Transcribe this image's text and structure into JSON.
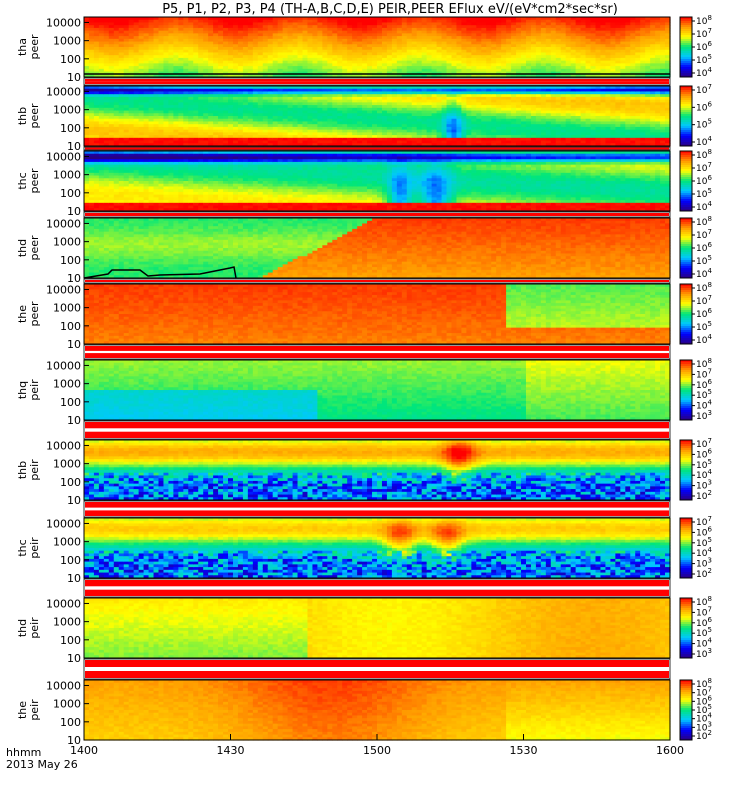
{
  "chart_data": {
    "type": "heatmap",
    "title": "P5, P1, P2, P3, P4 (TH-A,B,C,D,E) PEIR,PEER EFlux eV/(eV*cm2*sec*sr)",
    "x_ticks": [
      "1400",
      "1430",
      "1500",
      "1530",
      "1600"
    ],
    "x_range_minutes": [
      0,
      120
    ],
    "x_tick_minutes": [
      0,
      30,
      60,
      90,
      120
    ],
    "x_label_line1": "hhmm",
    "x_label_line2": "2013 May 26",
    "y_scale": "log",
    "y_ticks": [
      "10",
      "100",
      "1000",
      "10000"
    ],
    "y_tick_values": [
      10,
      100,
      1000,
      10000
    ],
    "palette_stops": [
      "#2a0080",
      "#0000ff",
      "#00c8ff",
      "#00e67a",
      "#ffff00",
      "#ff9900",
      "#ff0000"
    ],
    "panels": [
      {
        "name": "tha peer",
        "label_line1": "tha",
        "label_line2": "peer",
        "colorbar_ticks": [
          "10^4",
          "10^5",
          "10^6",
          "10^7",
          "10^8"
        ],
        "pattern": "ee-a"
      },
      {
        "name": "thb peer",
        "label_line1": "thb",
        "label_line2": "peer",
        "colorbar_ticks": [
          "10^4",
          "10^5",
          "10^6",
          "10^7"
        ],
        "pattern": "ee-b"
      },
      {
        "name": "thc peer",
        "label_line1": "thc",
        "label_line2": "peer",
        "colorbar_ticks": [
          "10^4",
          "10^5",
          "10^6",
          "10^7",
          "10^8"
        ],
        "pattern": "ee-c"
      },
      {
        "name": "thd peer",
        "label_line1": "thd",
        "label_line2": "peer",
        "colorbar_ticks": [
          "10^4",
          "10^5",
          "10^6",
          "10^7",
          "10^8"
        ],
        "pattern": "ee-d"
      },
      {
        "name": "the peer",
        "label_line1": "the",
        "label_line2": "peer",
        "colorbar_ticks": [
          "10^4",
          "10^5",
          "10^6",
          "10^7",
          "10^8"
        ],
        "pattern": "ee-e"
      },
      {
        "name": "thq peir",
        "label_line1": "thq",
        "label_line2": "peir",
        "colorbar_ticks": [
          "10^3",
          "10^4",
          "10^5",
          "10^6",
          "10^7",
          "10^8"
        ],
        "pattern": "ii-a"
      },
      {
        "name": "thb peir",
        "label_line1": "thb",
        "label_line2": "peir",
        "colorbar_ticks": [
          "10^2",
          "10^3",
          "10^4",
          "10^5",
          "10^6",
          "10^7"
        ],
        "pattern": "ii-b"
      },
      {
        "name": "thc peir",
        "label_line1": "thc",
        "label_line2": "peir",
        "colorbar_ticks": [
          "10^2",
          "10^3",
          "10^4",
          "10^5",
          "10^6",
          "10^7"
        ],
        "pattern": "ii-c"
      },
      {
        "name": "thd peir",
        "label_line1": "thd",
        "label_line2": "peir",
        "colorbar_ticks": [
          "10^3",
          "10^4",
          "10^5",
          "10^6",
          "10^7",
          "10^8"
        ],
        "pattern": "ii-d"
      },
      {
        "name": "the peir",
        "label_line1": "the",
        "label_line2": "peir",
        "colorbar_ticks": [
          "10^2",
          "10^3",
          "10^4",
          "10^5",
          "10^6",
          "10^7",
          "10^8"
        ],
        "pattern": "ii-e"
      }
    ]
  }
}
